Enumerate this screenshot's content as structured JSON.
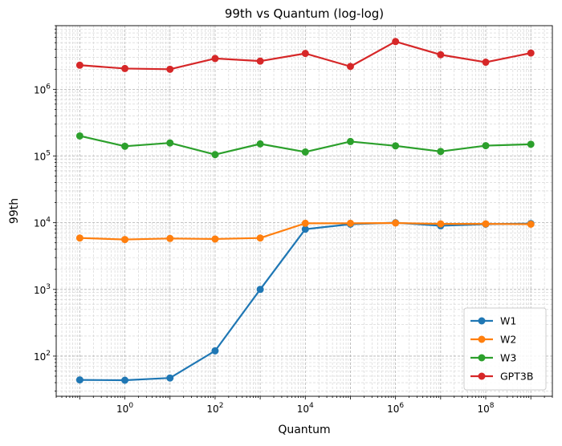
{
  "chart_data": {
    "type": "line",
    "title": "99th vs Quantum (log-log)",
    "xlabel": "Quantum",
    "ylabel": "99th",
    "xscale": "log",
    "yscale": "log",
    "xlim": [
      0.03,
      3000000000
    ],
    "ylim": [
      25,
      9000000
    ],
    "grid": "major and minor, dashed",
    "legend_position": "lower-right",
    "x": [
      0.1,
      1,
      10,
      100,
      1000,
      10000,
      100000,
      1000000,
      10000000,
      100000000,
      1000000000
    ],
    "xticks": [
      {
        "value": 1,
        "base": "10",
        "exp": "0"
      },
      {
        "value": 100,
        "base": "10",
        "exp": "2"
      },
      {
        "value": 10000,
        "base": "10",
        "exp": "4"
      },
      {
        "value": 1000000,
        "base": "10",
        "exp": "6"
      },
      {
        "value": 100000000,
        "base": "10",
        "exp": "8"
      }
    ],
    "yticks": [
      {
        "value": 100,
        "base": "10",
        "exp": "2"
      },
      {
        "value": 1000,
        "base": "10",
        "exp": "3"
      },
      {
        "value": 10000,
        "base": "10",
        "exp": "4"
      },
      {
        "value": 100000,
        "base": "10",
        "exp": "5"
      },
      {
        "value": 1000000,
        "base": "10",
        "exp": "6"
      }
    ],
    "series": [
      {
        "name": "W1",
        "color": "#1f77b4",
        "values": [
          44,
          43.5,
          47,
          120,
          1000,
          8000,
          9500,
          10000,
          9000,
          9500,
          9700
        ]
      },
      {
        "name": "W2",
        "color": "#ff7f0e",
        "values": [
          5900,
          5600,
          5800,
          5700,
          5900,
          9800,
          9800,
          9900,
          9600,
          9600,
          9500
        ]
      },
      {
        "name": "W3",
        "color": "#2ca02c",
        "values": [
          200000,
          140000,
          157000,
          105000,
          152000,
          115000,
          165000,
          142000,
          117000,
          143000,
          150000
        ]
      },
      {
        "name": "GPT3B",
        "color": "#d62728",
        "values": [
          2300000,
          2050000,
          2000000,
          2900000,
          2650000,
          3450000,
          2200000,
          5200000,
          3300000,
          2550000,
          3500000
        ]
      }
    ]
  }
}
